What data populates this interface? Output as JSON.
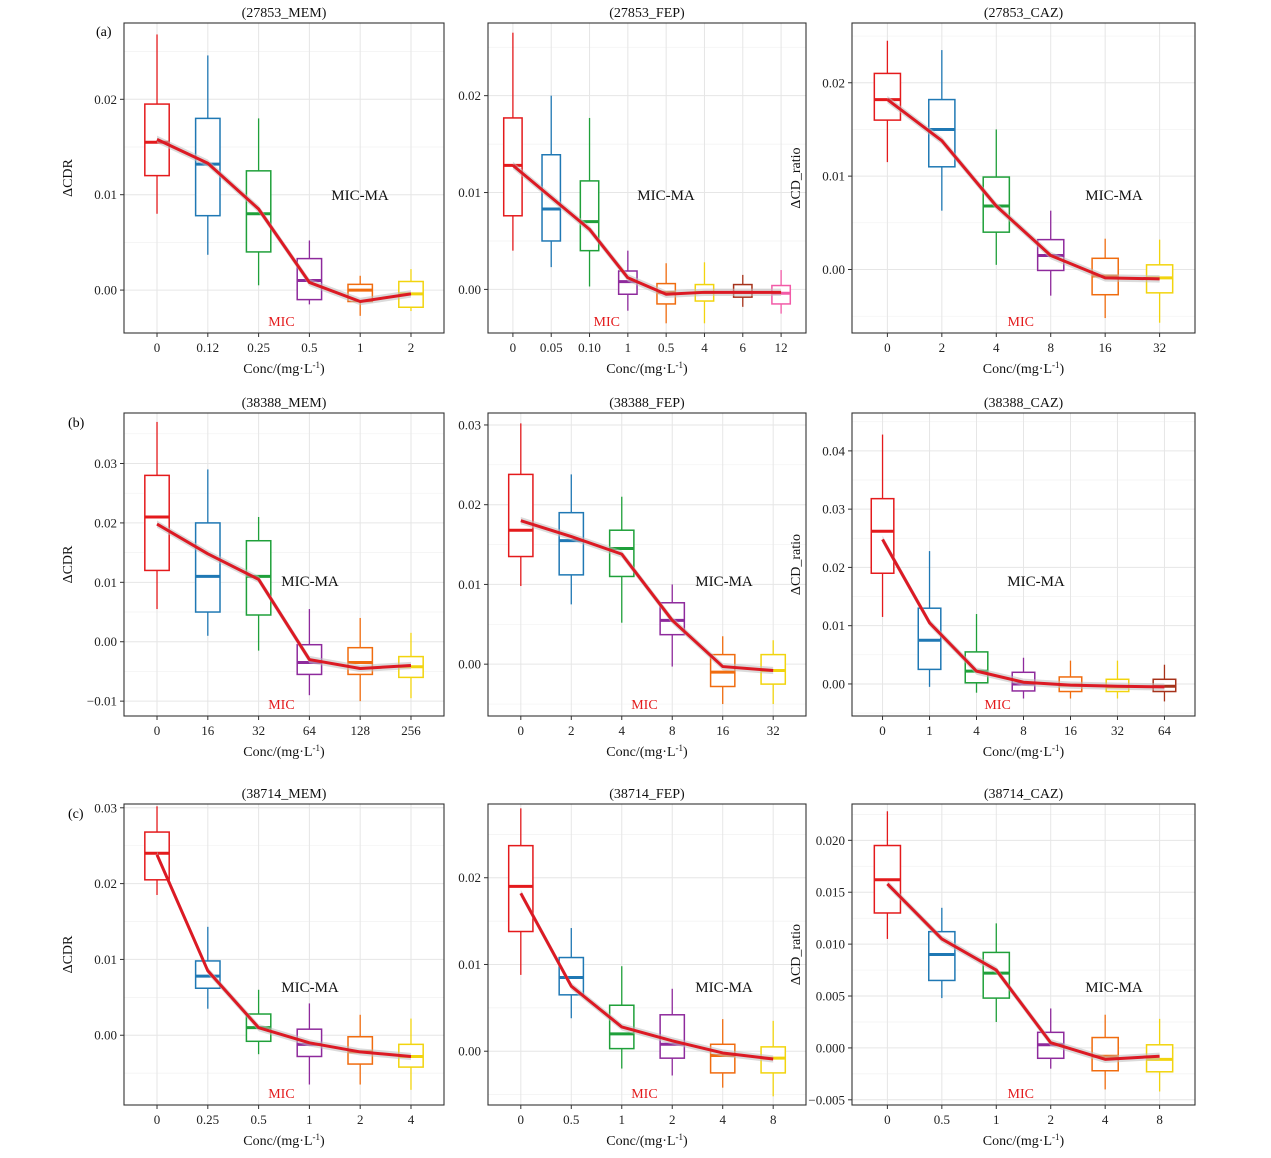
{
  "figure": {
    "row_labels": [
      "(a)",
      "(b)",
      "(c)"
    ],
    "ma_label": "MIC-MA",
    "mic_label": "MIC",
    "xlabel": "Conc/(mg·L",
    "xlabel_sup": "-1",
    "xlabel_tail": ")"
  },
  "chart_data": [
    {
      "type": "box",
      "title": "(27853_MEM)",
      "ylabel": "ΔCDR",
      "ylim": [
        -0.0045,
        0.028
      ],
      "yticks": [
        0.0,
        0.01,
        0.02
      ],
      "ytick_labels": [
        "0.00",
        "0.01",
        "0.02"
      ],
      "categories": [
        "0",
        "0.12",
        "0.25",
        "0.5",
        "1",
        "2"
      ],
      "mic_index": 3,
      "boxes": [
        {
          "min": 0.008,
          "q1": 0.012,
          "median": 0.0155,
          "q3": 0.0195,
          "max": 0.0268
        },
        {
          "min": 0.0037,
          "q1": 0.0078,
          "median": 0.0132,
          "q3": 0.018,
          "max": 0.0246
        },
        {
          "min": 0.0005,
          "q1": 0.004,
          "median": 0.008,
          "q3": 0.0125,
          "max": 0.018
        },
        {
          "min": -0.0015,
          "q1": -0.001,
          "median": 0.001,
          "q3": 0.0033,
          "max": 0.0052
        },
        {
          "min": -0.0027,
          "q1": -0.0012,
          "median": 0.0,
          "q3": 0.0006,
          "max": 0.0015
        },
        {
          "min": -0.0022,
          "q1": -0.0018,
          "median": -0.0004,
          "q3": 0.0009,
          "max": 0.0022
        }
      ],
      "trend": [
        0.0158,
        0.0133,
        0.0085,
        0.0008,
        -0.0012,
        -0.0004
      ]
    },
    {
      "type": "box",
      "title": "(27853_FEP)",
      "ylabel": "",
      "ylim": [
        -0.0045,
        0.0275
      ],
      "yticks": [
        0.0,
        0.01,
        0.02
      ],
      "ytick_labels": [
        "0.00",
        "0.01",
        "0.02"
      ],
      "categories": [
        "0",
        "0.05",
        "0.10",
        "1",
        "0.5",
        "4",
        "6",
        "12"
      ],
      "mic_index": 3,
      "boxes": [
        {
          "min": 0.004,
          "q1": 0.0076,
          "median": 0.0128,
          "q3": 0.0177,
          "max": 0.0265
        },
        {
          "min": 0.0023,
          "q1": 0.005,
          "median": 0.0083,
          "q3": 0.0139,
          "max": 0.02
        },
        {
          "min": 0.0003,
          "q1": 0.004,
          "median": 0.007,
          "q3": 0.0112,
          "max": 0.0177
        },
        {
          "min": -0.0022,
          "q1": -0.0005,
          "median": 0.0008,
          "q3": 0.0019,
          "max": 0.004
        },
        {
          "min": -0.0035,
          "q1": -0.0015,
          "median": -0.0003,
          "q3": 0.0006,
          "max": 0.0027
        },
        {
          "min": -0.0035,
          "q1": -0.0012,
          "median": -0.0003,
          "q3": 0.0005,
          "max": 0.0028
        },
        {
          "min": -0.0018,
          "q1": -0.0008,
          "median": -0.0003,
          "q3": 0.0005,
          "max": 0.0015
        },
        {
          "min": -0.0025,
          "q1": -0.0015,
          "median": -0.0004,
          "q3": 0.0004,
          "max": 0.002
        }
      ],
      "trend": [
        0.0128,
        0.0095,
        0.0062,
        0.0012,
        -0.0005,
        -0.0003,
        -0.0003,
        -0.0003
      ]
    },
    {
      "type": "box",
      "title": "(27853_CAZ)",
      "ylabel": "ΔCD_ratio",
      "ylim": [
        -0.0068,
        0.0264
      ],
      "yticks": [
        0.0,
        0.01,
        0.02
      ],
      "ytick_labels": [
        "0.00",
        "0.01",
        "0.02"
      ],
      "categories": [
        "0",
        "2",
        "4",
        "8",
        "16",
        "32"
      ],
      "mic_index": 3,
      "boxes": [
        {
          "min": 0.0115,
          "q1": 0.016,
          "median": 0.0182,
          "q3": 0.021,
          "max": 0.0245
        },
        {
          "min": 0.0063,
          "q1": 0.011,
          "median": 0.015,
          "q3": 0.0182,
          "max": 0.0235
        },
        {
          "min": 0.0005,
          "q1": 0.004,
          "median": 0.0068,
          "q3": 0.0099,
          "max": 0.015
        },
        {
          "min": -0.0028,
          "q1": -0.0001,
          "median": 0.0015,
          "q3": 0.0032,
          "max": 0.0063
        },
        {
          "min": -0.0052,
          "q1": -0.0027,
          "median": -0.0007,
          "q3": 0.0012,
          "max": 0.0033
        },
        {
          "min": -0.0057,
          "q1": -0.0025,
          "median": -0.0009,
          "q3": 0.0005,
          "max": 0.0032
        }
      ],
      "trend": [
        0.0182,
        0.0138,
        0.0068,
        0.0015,
        -0.0009,
        -0.001
      ]
    },
    {
      "type": "box",
      "title": "(38388_MEM)",
      "ylabel": "ΔCDR",
      "ylim": [
        -0.0125,
        0.0385
      ],
      "yticks": [
        -0.01,
        0.0,
        0.01,
        0.02,
        0.03
      ],
      "ytick_labels": [
        "−0.01",
        "0.00",
        "0.01",
        "0.02",
        "0.03"
      ],
      "categories": [
        "0",
        "16",
        "32",
        "64",
        "128",
        "256"
      ],
      "mic_index": 3,
      "boxes": [
        {
          "min": 0.0055,
          "q1": 0.012,
          "median": 0.021,
          "q3": 0.028,
          "max": 0.037
        },
        {
          "min": 0.001,
          "q1": 0.005,
          "median": 0.011,
          "q3": 0.02,
          "max": 0.029
        },
        {
          "min": -0.0015,
          "q1": 0.0045,
          "median": 0.011,
          "q3": 0.017,
          "max": 0.021
        },
        {
          "min": -0.009,
          "q1": -0.0055,
          "median": -0.0035,
          "q3": -0.0005,
          "max": 0.0055
        },
        {
          "min": -0.01,
          "q1": -0.0055,
          "median": -0.0035,
          "q3": -0.001,
          "max": 0.004
        },
        {
          "min": -0.0095,
          "q1": -0.006,
          "median": -0.0042,
          "q3": -0.0025,
          "max": 0.0015
        }
      ],
      "trend": [
        0.0198,
        0.0148,
        0.0105,
        -0.003,
        -0.0045,
        -0.004
      ]
    },
    {
      "type": "box",
      "title": "(38388_FEP)",
      "ylabel": "",
      "ylim": [
        -0.0065,
        0.0315
      ],
      "yticks": [
        0.0,
        0.01,
        0.02,
        0.03
      ],
      "ytick_labels": [
        "0.00",
        "0.01",
        "0.02",
        "0.03"
      ],
      "categories": [
        "0",
        "2",
        "4",
        "8",
        "16",
        "32"
      ],
      "mic_index": 3,
      "boxes": [
        {
          "min": 0.0098,
          "q1": 0.0135,
          "median": 0.0168,
          "q3": 0.0238,
          "max": 0.0302
        },
        {
          "min": 0.0075,
          "q1": 0.0112,
          "median": 0.0155,
          "q3": 0.019,
          "max": 0.0238
        },
        {
          "min": 0.0052,
          "q1": 0.011,
          "median": 0.0145,
          "q3": 0.0168,
          "max": 0.021
        },
        {
          "min": -0.0003,
          "q1": 0.0037,
          "median": 0.0055,
          "q3": 0.0077,
          "max": 0.01
        },
        {
          "min": -0.005,
          "q1": -0.0028,
          "median": -0.001,
          "q3": 0.0012,
          "max": 0.0035
        },
        {
          "min": -0.005,
          "q1": -0.0025,
          "median": -0.0008,
          "q3": 0.0012,
          "max": 0.003
        }
      ],
      "trend": [
        0.018,
        0.016,
        0.0138,
        0.0055,
        -0.0003,
        -0.0008
      ]
    },
    {
      "type": "box",
      "title": "(38388_CAZ)",
      "ylabel": "ΔCD_ratio",
      "ylim": [
        -0.0055,
        0.0465
      ],
      "yticks": [
        0.0,
        0.01,
        0.02,
        0.03,
        0.04
      ],
      "ytick_labels": [
        "0.00",
        "0.01",
        "0.02",
        "0.03",
        "0.04"
      ],
      "categories": [
        "0",
        "1",
        "4",
        "8",
        "16",
        "32",
        "64"
      ],
      "mic_index": 3,
      "boxes": [
        {
          "min": 0.0115,
          "q1": 0.019,
          "median": 0.0262,
          "q3": 0.0318,
          "max": 0.0428
        },
        {
          "min": -0.0005,
          "q1": 0.0025,
          "median": 0.0075,
          "q3": 0.013,
          "max": 0.0228
        },
        {
          "min": -0.0015,
          "q1": 0.0002,
          "median": 0.0022,
          "q3": 0.0055,
          "max": 0.012
        },
        {
          "min": -0.0025,
          "q1": -0.0012,
          "median": 0.0,
          "q3": 0.002,
          "max": 0.0045
        },
        {
          "min": -0.0025,
          "q1": -0.0013,
          "median": -0.0002,
          "q3": 0.0012,
          "max": 0.004
        },
        {
          "min": -0.0025,
          "q1": -0.0013,
          "median": -0.0005,
          "q3": 0.0008,
          "max": 0.004
        },
        {
          "min": -0.003,
          "q1": -0.0013,
          "median": -0.0004,
          "q3": 0.0008,
          "max": 0.0033
        }
      ],
      "trend": [
        0.0248,
        0.0105,
        0.0022,
        0.0003,
        -0.0002,
        -0.0004,
        -0.0005
      ]
    },
    {
      "type": "box",
      "title": "(38714_MEM)",
      "ylabel": "ΔCDR",
      "ylim": [
        -0.0092,
        0.0305
      ],
      "yticks": [
        0.0,
        0.01,
        0.02,
        0.03
      ],
      "ytick_labels": [
        "0.00",
        "0.01",
        "0.02",
        "0.03"
      ],
      "categories": [
        "0",
        "0.25",
        "0.5",
        "1",
        "2",
        "4"
      ],
      "mic_index": 3,
      "boxes": [
        {
          "min": 0.0185,
          "q1": 0.0205,
          "median": 0.024,
          "q3": 0.0268,
          "max": 0.0302
        },
        {
          "min": 0.0035,
          "q1": 0.0062,
          "median": 0.0078,
          "q3": 0.0098,
          "max": 0.0143
        },
        {
          "min": -0.0025,
          "q1": -0.0008,
          "median": 0.001,
          "q3": 0.0028,
          "max": 0.006
        },
        {
          "min": -0.0065,
          "q1": -0.0028,
          "median": -0.0012,
          "q3": 0.0008,
          "max": 0.0042
        },
        {
          "min": -0.0065,
          "q1": -0.0038,
          "median": -0.0022,
          "q3": -0.0002,
          "max": 0.0027
        },
        {
          "min": -0.0072,
          "q1": -0.0042,
          "median": -0.0028,
          "q3": -0.0012,
          "max": 0.0022
        }
      ],
      "trend": [
        0.0238,
        0.0085,
        0.001,
        -0.001,
        -0.0022,
        -0.0028
      ]
    },
    {
      "type": "box",
      "title": "(38714_FEP)",
      "ylabel": "",
      "ylim": [
        -0.0062,
        0.0285
      ],
      "yticks": [
        0.0,
        0.01,
        0.02
      ],
      "ytick_labels": [
        "0.00",
        "0.01",
        "0.02"
      ],
      "categories": [
        "0",
        "0.5",
        "1",
        "2",
        "4",
        "8"
      ],
      "mic_index": 3,
      "boxes": [
        {
          "min": 0.0088,
          "q1": 0.0138,
          "median": 0.019,
          "q3": 0.0237,
          "max": 0.028
        },
        {
          "min": 0.0038,
          "q1": 0.0065,
          "median": 0.0085,
          "q3": 0.0108,
          "max": 0.0142
        },
        {
          "min": -0.002,
          "q1": 0.0003,
          "median": 0.002,
          "q3": 0.0053,
          "max": 0.0098
        },
        {
          "min": -0.0028,
          "q1": -0.0008,
          "median": 0.0008,
          "q3": 0.0042,
          "max": 0.0072
        },
        {
          "min": -0.0042,
          "q1": -0.0025,
          "median": -0.0005,
          "q3": 0.0008,
          "max": 0.0037
        },
        {
          "min": -0.0052,
          "q1": -0.0025,
          "median": -0.0008,
          "q3": 0.0005,
          "max": 0.0035
        }
      ],
      "trend": [
        0.0182,
        0.0075,
        0.0028,
        0.0012,
        -0.0002,
        -0.0009
      ]
    },
    {
      "type": "box",
      "title": "(38714_CAZ)",
      "ylabel": "ΔCD_ratio",
      "ylim": [
        -0.0055,
        0.0235
      ],
      "yticks": [
        -0.005,
        0.0,
        0.005,
        0.01,
        0.015,
        0.02
      ],
      "ytick_labels": [
        "−0.005",
        "0.000",
        "0.005",
        "0.010",
        "0.015",
        "0.020"
      ],
      "categories": [
        "0",
        "0.5",
        "1",
        "2",
        "4",
        "8"
      ],
      "mic_index": 3,
      "boxes": [
        {
          "min": 0.0105,
          "q1": 0.013,
          "median": 0.0162,
          "q3": 0.0195,
          "max": 0.0228
        },
        {
          "min": 0.0048,
          "q1": 0.0065,
          "median": 0.009,
          "q3": 0.0112,
          "max": 0.0135
        },
        {
          "min": 0.0025,
          "q1": 0.0048,
          "median": 0.0072,
          "q3": 0.0092,
          "max": 0.012
        },
        {
          "min": -0.002,
          "q1": -0.001,
          "median": 0.0003,
          "q3": 0.0015,
          "max": 0.0038
        },
        {
          "min": -0.004,
          "q1": -0.0022,
          "median": -0.0008,
          "q3": 0.001,
          "max": 0.0032
        },
        {
          "min": -0.0042,
          "q1": -0.0023,
          "median": -0.0011,
          "q3": 0.0003,
          "max": 0.0028
        }
      ],
      "trend": [
        0.0158,
        0.0105,
        0.0075,
        0.0005,
        -0.0011,
        -0.0008
      ]
    }
  ]
}
